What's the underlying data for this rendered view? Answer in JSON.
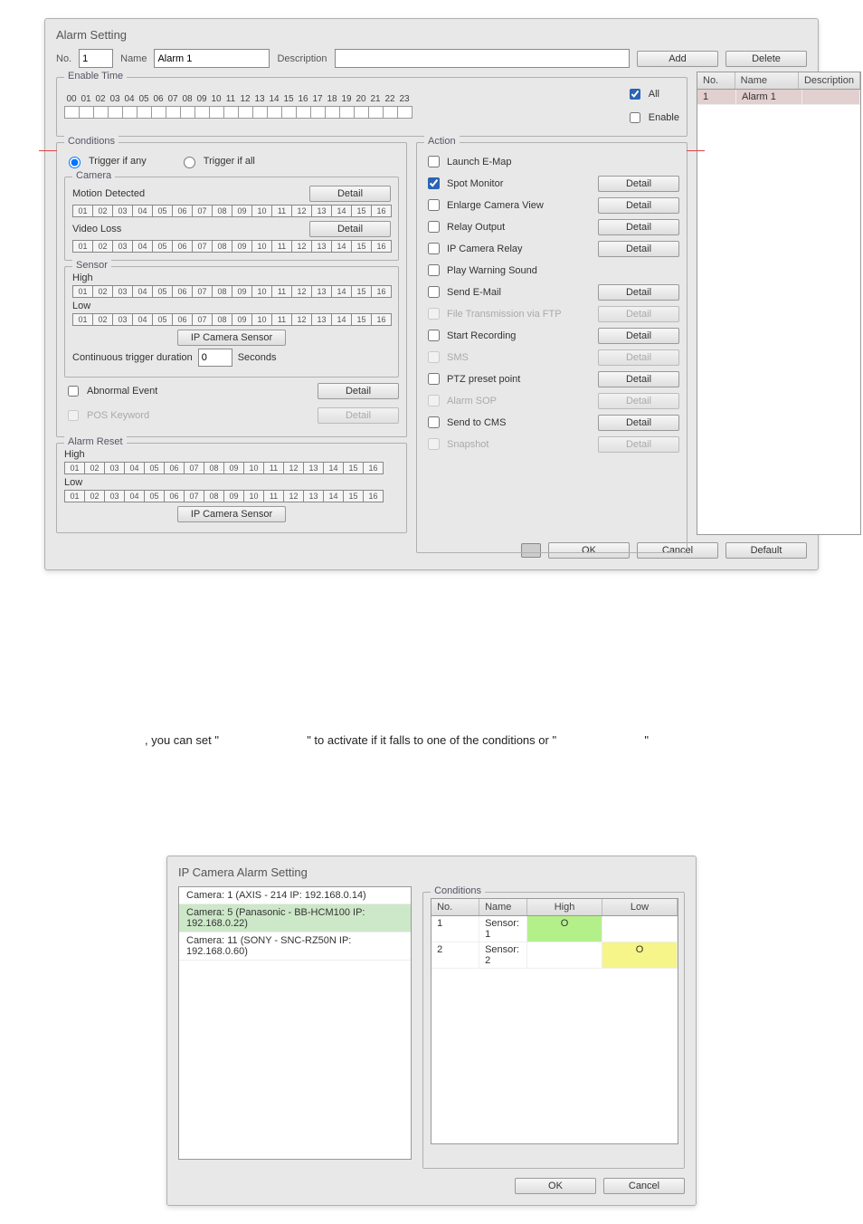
{
  "alarm_window": {
    "title": "Alarm Setting",
    "no_label": "No.",
    "no_value": "1",
    "name_label": "Name",
    "name_value": "Alarm 1",
    "description_label": "Description",
    "description_value": "",
    "add_btn": "Add",
    "delete_btn": "Delete",
    "enable_time": {
      "legend": "Enable Time",
      "hours": [
        "00",
        "01",
        "02",
        "03",
        "04",
        "05",
        "06",
        "07",
        "08",
        "09",
        "10",
        "11",
        "12",
        "13",
        "14",
        "15",
        "16",
        "17",
        "18",
        "19",
        "20",
        "21",
        "22",
        "23"
      ],
      "all_label": "All",
      "enable_label": "Enable"
    },
    "conditions": {
      "legend": "Conditions",
      "trigger_any": "Trigger if any",
      "trigger_all": "Trigger if all",
      "camera_legend": "Camera",
      "motion_detected": "Motion Detected",
      "detail_btn": "Detail",
      "video_loss": "Video Loss",
      "grid_cells": [
        "01",
        "02",
        "03",
        "04",
        "05",
        "06",
        "07",
        "08",
        "09",
        "10",
        "11",
        "12",
        "13",
        "14",
        "15",
        "16"
      ],
      "sensor_legend": "Sensor",
      "high": "High",
      "low": "Low",
      "ip_cam_sensor_btn": "IP Camera Sensor",
      "cont_trigger": "Continuous trigger duration",
      "cont_trigger_val": "0",
      "seconds": "Seconds",
      "abnormal_event": "Abnormal Event",
      "pos_keyword": "POS Keyword"
    },
    "action": {
      "legend": "Action",
      "launch_emap": "Launch E-Map",
      "spot_monitor": "Spot Monitor",
      "enlarge_cam": "Enlarge Camera View",
      "relay_output": "Relay Output",
      "ip_cam_relay": "IP Camera Relay",
      "play_warning": "Play Warning Sound",
      "send_email": "Send E-Mail",
      "file_ftp": "File Transmission via FTP",
      "start_recording": "Start Recording",
      "sms": "SMS",
      "ptz_preset": "PTZ preset point",
      "alarm_sop": "Alarm SOP",
      "send_cms": "Send to CMS",
      "snapshot": "Snapshot",
      "detail_btn": "Detail"
    },
    "alarm_reset": {
      "legend": "Alarm Reset",
      "high": "High",
      "low": "Low",
      "ip_cam_sensor_btn": "IP Camera Sensor"
    },
    "list_table": {
      "cols": [
        "No.",
        "Name",
        "Description"
      ],
      "rows": [
        [
          "1",
          "Alarm 1",
          ""
        ]
      ]
    },
    "ok_btn": "OK",
    "cancel_btn": "Cancel",
    "default_btn": "Default"
  },
  "mid_sentence": {
    "p1": ", you can set \"",
    "p2": "\" to activate if it falls to one of the conditions or \"",
    "p3": "\""
  },
  "ip_window": {
    "title": "IP Camera Alarm Setting",
    "cameras": [
      "Camera: 1 (AXIS - 214 IP: 192.168.0.14)",
      "Camera: 5 (Panasonic - BB-HCM100 IP: 192.168.0.22)",
      "Camera: 11 (SONY - SNC-RZ50N IP: 192.168.0.60)"
    ],
    "sel_index": 1,
    "conditions_legend": "Conditions",
    "table": {
      "cols": [
        "No.",
        "Name",
        "High",
        "Low"
      ],
      "rows": [
        {
          "no": "1",
          "name": "Sensor: 1",
          "high": "O",
          "low": ""
        },
        {
          "no": "2",
          "name": "Sensor: 2",
          "high": "",
          "low": "O"
        }
      ]
    },
    "ok_btn": "OK",
    "cancel_btn": "Cancel"
  },
  "colors": {
    "window_bg": "#e8e8e8",
    "border": "#b0b0b0",
    "highlight_pink": "#e2cfcf",
    "green": "#b4f08a",
    "yellow": "#f5f58a"
  }
}
